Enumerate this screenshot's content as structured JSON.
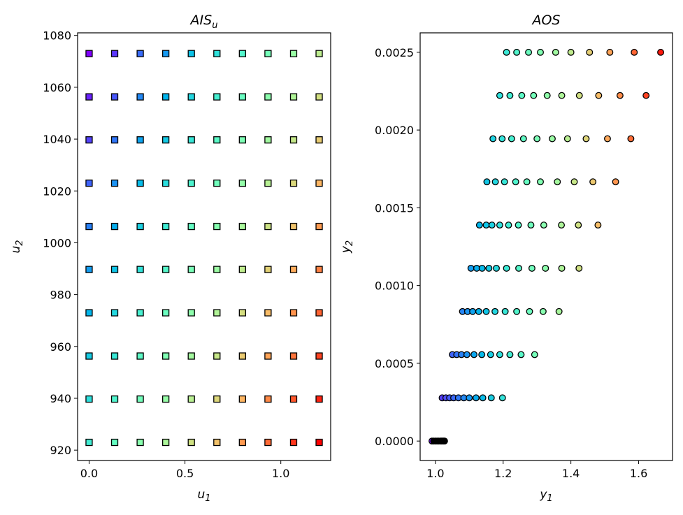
{
  "chart_data": [
    {
      "type": "scatter",
      "title": "AIS",
      "title_subscript": "u",
      "xlabel": "u",
      "xlabel_subscript": "1",
      "ylabel": "u",
      "ylabel_subscript": "2",
      "marker": "square",
      "xlim": [
        -0.06,
        1.26
      ],
      "ylim": [
        916,
        1081
      ],
      "xticks": [
        0.0,
        0.5,
        1.0
      ],
      "xtick_labels": [
        "0.0",
        "0.5",
        "1.0"
      ],
      "yticks": [
        920,
        940,
        960,
        980,
        1000,
        1020,
        1040,
        1060,
        1080
      ],
      "ytick_labels": [
        "920",
        "940",
        "960",
        "980",
        "1000",
        "1020",
        "1040",
        "1060",
        "1080"
      ],
      "x_grid": [
        0.0,
        0.1333,
        0.2667,
        0.4,
        0.5333,
        0.6667,
        0.8,
        0.9333,
        1.0667,
        1.2
      ],
      "y_grid": [
        923.0,
        939.7,
        956.3,
        973.0,
        989.7,
        1006.3,
        1023.0,
        1039.7,
        1056.3,
        1073.0
      ],
      "colormap": "rainbow",
      "grid": false
    },
    {
      "type": "scatter",
      "title": "AOS",
      "xlabel": "y",
      "xlabel_subscript": "1",
      "ylabel": "y",
      "ylabel_subscript": "2",
      "marker": "circle",
      "xlim": [
        0.955,
        1.7
      ],
      "ylim": [
        -0.000125,
        0.002625
      ],
      "xticks": [
        1.0,
        1.2,
        1.4,
        1.6
      ],
      "xtick_labels": [
        "1.0",
        "1.2",
        "1.4",
        "1.6"
      ],
      "yticks": [
        0.0,
        0.0005,
        0.001,
        0.0015,
        0.002,
        0.0025
      ],
      "ytick_labels": [
        "0.0000",
        "0.0005",
        "0.0010",
        "0.0015",
        "0.0020",
        "0.0025"
      ],
      "rows": [
        {
          "y": 0.0,
          "x": [
            0.99,
            0.995,
            1.0,
            1.005,
            1.01,
            1.015,
            1.018,
            1.021,
            1.024,
            1.027
          ]
        },
        {
          "y": 0.000278,
          "x": [
            1.02,
            1.031,
            1.042,
            1.054,
            1.068,
            1.084,
            1.1,
            1.12,
            1.14,
            1.165,
            1.198
          ]
        },
        {
          "y": 0.000556,
          "x": [
            1.05,
            1.063,
            1.077,
            1.093,
            1.114,
            1.137,
            1.163,
            1.19,
            1.22,
            1.253,
            1.293
          ]
        },
        {
          "y": 0.000833,
          "x": [
            1.08,
            1.095,
            1.11,
            1.128,
            1.15,
            1.176,
            1.206,
            1.24,
            1.278,
            1.318,
            1.365
          ]
        },
        {
          "y": 0.001111,
          "x": [
            1.105,
            1.122,
            1.138,
            1.158,
            1.18,
            1.21,
            1.246,
            1.285,
            1.325,
            1.373,
            1.424
          ]
        },
        {
          "y": 0.001389,
          "x": [
            1.13,
            1.15,
            1.167,
            1.19,
            1.216,
            1.245,
            1.282,
            1.32,
            1.372,
            1.422,
            1.48
          ]
        },
        {
          "y": 0.001667,
          "x": [
            1.152,
            1.177,
            1.204,
            1.237,
            1.27,
            1.31,
            1.36,
            1.41,
            1.465,
            1.532
          ]
        },
        {
          "y": 0.001944,
          "x": [
            1.17,
            1.197,
            1.225,
            1.26,
            1.3,
            1.345,
            1.39,
            1.445,
            1.508,
            1.577
          ]
        },
        {
          "y": 0.002222,
          "x": [
            1.19,
            1.22,
            1.255,
            1.29,
            1.33,
            1.373,
            1.425,
            1.482,
            1.545,
            1.622
          ]
        },
        {
          "y": 0.0025,
          "x": [
            1.21,
            1.24,
            1.275,
            1.31,
            1.355,
            1.4,
            1.455,
            1.515,
            1.587,
            1.665
          ]
        }
      ],
      "colormap": "rainbow",
      "grid": false
    }
  ]
}
